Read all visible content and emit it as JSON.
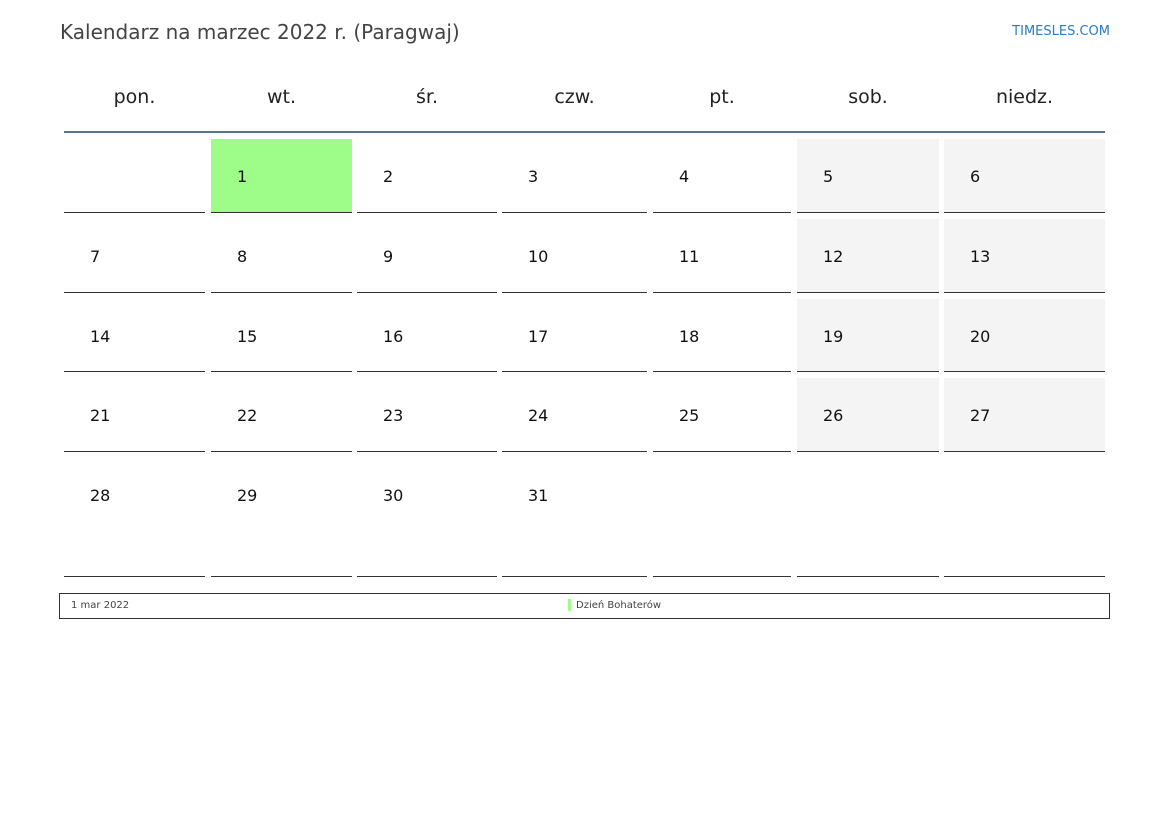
{
  "header": {
    "title": "Kalendarz na marzec 2022 r. (Paragwaj)",
    "brand": "TIMESLES.COM"
  },
  "weekdays": [
    "pon.",
    "wt.",
    "śr.",
    "czw.",
    "pt.",
    "sob.",
    "niedz."
  ],
  "weeks": [
    [
      "",
      "1",
      "2",
      "3",
      "4",
      "5",
      "6"
    ],
    [
      "7",
      "8",
      "9",
      "10",
      "11",
      "12",
      "13"
    ],
    [
      "14",
      "15",
      "16",
      "17",
      "18",
      "19",
      "20"
    ],
    [
      "21",
      "22",
      "23",
      "24",
      "25",
      "26",
      "27"
    ],
    [
      "28",
      "29",
      "30",
      "31",
      "",
      "",
      ""
    ]
  ],
  "holiday_day": "1",
  "colors": {
    "holiday": "#9efc88",
    "weekend": "#f4f4f4",
    "header_rule": "#5b7396"
  },
  "legend": [
    {
      "date": "1 mar 2022",
      "name": "Dzień Bohaterów"
    }
  ]
}
